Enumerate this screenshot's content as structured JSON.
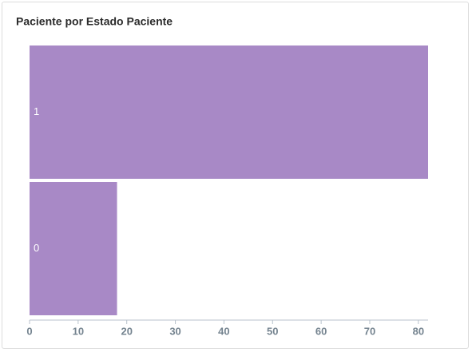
{
  "chart_data": {
    "type": "hbar",
    "title": "Paciente por Estado Paciente",
    "categories": [
      "1",
      "0"
    ],
    "values": [
      82,
      18
    ],
    "color": "#a889c6",
    "xlim": [
      0,
      82
    ],
    "xticks": [
      0,
      10,
      20,
      30,
      40,
      50,
      60,
      70,
      80
    ]
  }
}
